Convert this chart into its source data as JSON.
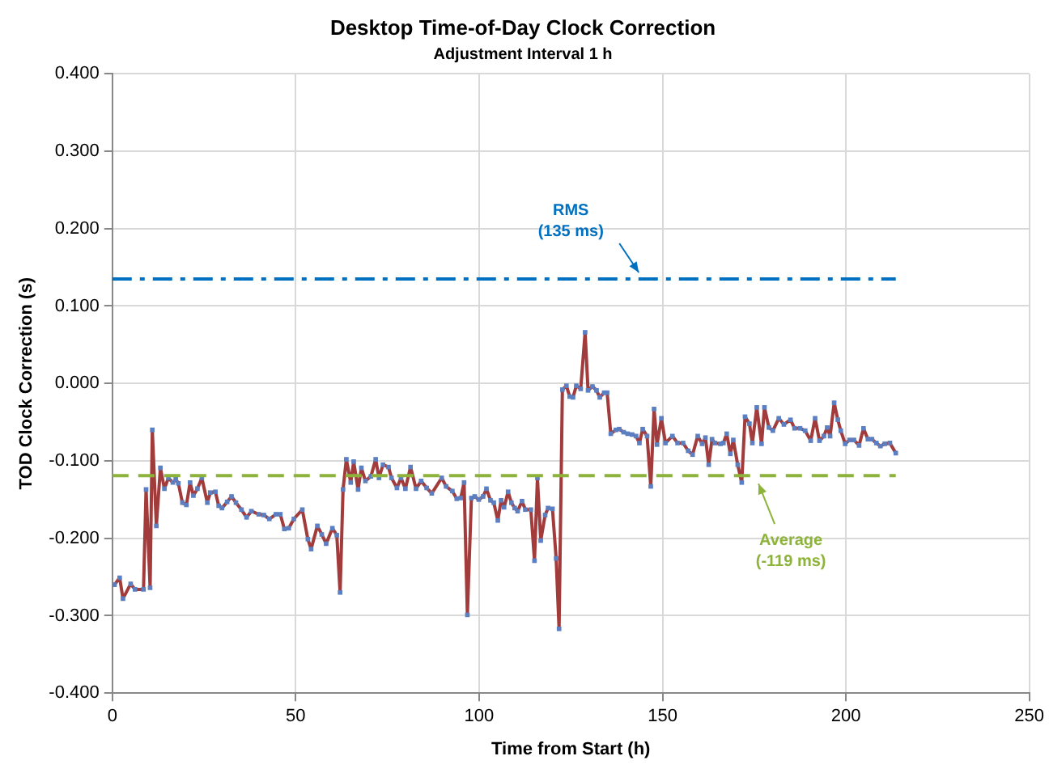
{
  "chart_data": {
    "type": "line",
    "title": "Desktop Time-of-Day Clock Correction",
    "subtitle": "Adjustment Interval 1 h",
    "xlabel": "Time from Start (h)",
    "ylabel": "TOD Clock Correction (s)",
    "xlim": [
      0,
      250
    ],
    "xticks": [
      0,
      50,
      100,
      150,
      200,
      250
    ],
    "ylim": [
      -0.4,
      0.4
    ],
    "yticks": [
      {
        "value": -0.4,
        "label": "-0.400"
      },
      {
        "value": -0.3,
        "label": "-0.300"
      },
      {
        "value": -0.2,
        "label": "-0.200"
      },
      {
        "value": -0.1,
        "label": "-0.100"
      },
      {
        "value": 0,
        "label": "0.000"
      },
      {
        "value": 0.1,
        "label": "0.100"
      },
      {
        "value": 0.2,
        "label": "0.200"
      },
      {
        "value": 0.3,
        "label": "0.300"
      },
      {
        "value": 0.4,
        "label": "0.400"
      }
    ],
    "grid": true,
    "legend": false,
    "marker": "square",
    "line_style": "solid",
    "ref_lines": [
      {
        "axis": "y",
        "value": 0.135,
        "label": "RMS\n(135 ms)",
        "color": "#0070c0",
        "line_style": "dashed"
      },
      {
        "axis": "y",
        "value": -0.119,
        "label": "Average\n(-119 ms)",
        "color": "#8db33a",
        "line_style": "dashed"
      }
    ],
    "series": [
      {
        "color": "#a23b3b",
        "x": [
          0.6,
          2.0,
          2.9,
          5.0,
          6.2,
          8.5,
          9.2,
          10.3,
          10.9,
          12.0,
          13.1,
          14.2,
          15.3,
          16.5,
          17.3,
          18.0,
          19.1,
          20.2,
          21.2,
          22.1,
          23.2,
          24.4,
          25.9,
          26.7,
          28.1,
          29.0,
          29.9,
          31.3,
          32.5,
          33.7,
          35.2,
          36.6,
          37.9,
          39.9,
          41.3,
          42.8,
          44.6,
          45.8,
          46.9,
          48.1,
          49.5,
          51.8,
          53.3,
          54.2,
          55.9,
          57.1,
          58.3,
          60.0,
          61.2,
          62.1,
          62.9,
          63.8,
          65.0,
          65.8,
          67.0,
          67.9,
          69.0,
          70.5,
          71.8,
          72.7,
          73.8,
          75.3,
          76.1,
          77.6,
          78.7,
          79.9,
          81.3,
          82.8,
          84.2,
          85.7,
          87.1,
          89.8,
          91.0,
          92.7,
          93.9,
          95.0,
          95.9,
          96.8,
          97.9,
          98.8,
          99.9,
          101.1,
          102.0,
          103.1,
          104.0,
          105.1,
          106.0,
          106.8,
          107.9,
          108.8,
          109.7,
          110.5,
          111.7,
          112.6,
          114.1,
          115.1,
          115.9,
          116.8,
          118.0,
          118.8,
          120.0,
          121.0,
          121.8,
          122.7,
          123.8,
          124.7,
          125.6,
          126.5,
          127.7,
          128.9,
          129.7,
          130.9,
          132.0,
          132.9,
          134.1,
          134.9,
          135.9,
          137.3,
          138.2,
          139.4,
          140.5,
          141.7,
          142.8,
          143.7,
          144.6,
          145.8,
          146.8,
          147.7,
          148.5,
          149.7,
          150.8,
          152.7,
          154.1,
          155.6,
          157.0,
          158.2,
          159.6,
          160.8,
          161.7,
          162.6,
          163.5,
          164.3,
          165.8,
          166.6,
          167.5,
          168.5,
          169.3,
          170.5,
          171.6,
          172.5,
          173.7,
          174.5,
          175.7,
          177.0,
          177.8,
          179.0,
          180.1,
          181.7,
          183.1,
          184.9,
          186.0,
          187.5,
          188.9,
          190.4,
          191.6,
          192.8,
          194.0,
          194.9,
          195.7,
          196.8,
          197.8,
          198.6,
          199.8,
          201.0,
          202.2,
          203.6,
          204.8,
          206.0,
          207.1,
          208.3,
          209.4,
          210.6,
          212.0,
          213.6
        ],
        "values": [
          -0.26,
          -0.251,
          -0.278,
          -0.259,
          -0.266,
          -0.266,
          -0.137,
          -0.264,
          -0.06,
          -0.184,
          -0.109,
          -0.136,
          -0.122,
          -0.128,
          -0.124,
          -0.129,
          -0.154,
          -0.157,
          -0.128,
          -0.145,
          -0.136,
          -0.122,
          -0.154,
          -0.141,
          -0.14,
          -0.158,
          -0.161,
          -0.153,
          -0.146,
          -0.154,
          -0.163,
          -0.173,
          -0.165,
          -0.169,
          -0.17,
          -0.175,
          -0.169,
          -0.169,
          -0.188,
          -0.187,
          -0.175,
          -0.163,
          -0.201,
          -0.214,
          -0.184,
          -0.195,
          -0.207,
          -0.187,
          -0.196,
          -0.27,
          -0.137,
          -0.098,
          -0.128,
          -0.101,
          -0.137,
          -0.109,
          -0.126,
          -0.12,
          -0.098,
          -0.122,
          -0.105,
          -0.108,
          -0.122,
          -0.135,
          -0.122,
          -0.136,
          -0.108,
          -0.136,
          -0.126,
          -0.135,
          -0.142,
          -0.122,
          -0.133,
          -0.139,
          -0.149,
          -0.148,
          -0.128,
          -0.299,
          -0.148,
          -0.146,
          -0.15,
          -0.146,
          -0.136,
          -0.151,
          -0.154,
          -0.177,
          -0.151,
          -0.16,
          -0.14,
          -0.154,
          -0.161,
          -0.165,
          -0.152,
          -0.163,
          -0.163,
          -0.229,
          -0.122,
          -0.203,
          -0.17,
          -0.161,
          -0.162,
          -0.226,
          -0.317,
          -0.008,
          -0.003,
          -0.017,
          -0.018,
          -0.003,
          -0.007,
          0.066,
          -0.009,
          -0.004,
          -0.009,
          -0.018,
          -0.012,
          -0.012,
          -0.065,
          -0.06,
          -0.059,
          -0.063,
          -0.065,
          -0.066,
          -0.068,
          -0.077,
          -0.059,
          -0.068,
          -0.133,
          -0.033,
          -0.079,
          -0.045,
          -0.077,
          -0.068,
          -0.077,
          -0.077,
          -0.087,
          -0.092,
          -0.068,
          -0.078,
          -0.07,
          -0.105,
          -0.072,
          -0.077,
          -0.078,
          -0.077,
          -0.065,
          -0.091,
          -0.073,
          -0.105,
          -0.128,
          -0.043,
          -0.052,
          -0.077,
          -0.031,
          -0.078,
          -0.031,
          -0.057,
          -0.061,
          -0.045,
          -0.053,
          -0.047,
          -0.058,
          -0.058,
          -0.061,
          -0.074,
          -0.045,
          -0.074,
          -0.068,
          -0.057,
          -0.068,
          -0.025,
          -0.047,
          -0.061,
          -0.078,
          -0.073,
          -0.073,
          -0.08,
          -0.058,
          -0.072,
          -0.072,
          -0.077,
          -0.081,
          -0.078,
          -0.077,
          -0.09
        ]
      }
    ]
  }
}
